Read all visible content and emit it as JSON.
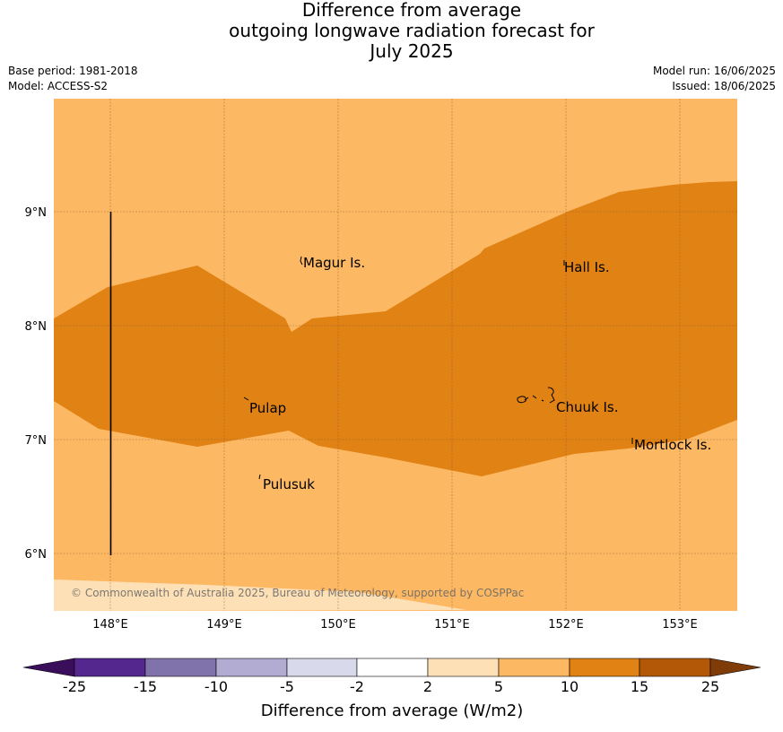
{
  "title": {
    "line1": "Difference from average",
    "line2": "outgoing longwave radiation forecast for",
    "line3": "July 2025"
  },
  "meta": {
    "base_period": "Base period: 1981-2018",
    "model": "Model: ACCESS-S2",
    "model_run": "Model run: 16/06/2025",
    "issued": "Issued: 18/06/2025"
  },
  "map": {
    "lat_ticks": [
      "9°N",
      "8°N",
      "7°N",
      "6°N"
    ],
    "lon_ticks": [
      "148°E",
      "149°E",
      "150°E",
      "151°E",
      "152°E",
      "153°E"
    ],
    "places": [
      "Magur Is.",
      "Hall Is.",
      "Pulap",
      "Chuuk Is.",
      "Mortlock Is.",
      "Pulusuk"
    ],
    "copyright": "© Commonwealth of Australia 2025, Bureau of Meteorology, supported by COSPPac"
  },
  "colorbar": {
    "label": "Difference from average (W/m2)",
    "ticks": [
      "-25",
      "-15",
      "-10",
      "-5",
      "-2",
      "2",
      "5",
      "10",
      "15",
      "25"
    ],
    "colors": [
      "#3a0e5a",
      "#54278f",
      "#8073ac",
      "#b2abd2",
      "#d8daeb",
      "#ffffff",
      "#fee0b6",
      "#fdb863",
      "#e08214",
      "#b35806",
      "#7f3b08"
    ]
  }
}
